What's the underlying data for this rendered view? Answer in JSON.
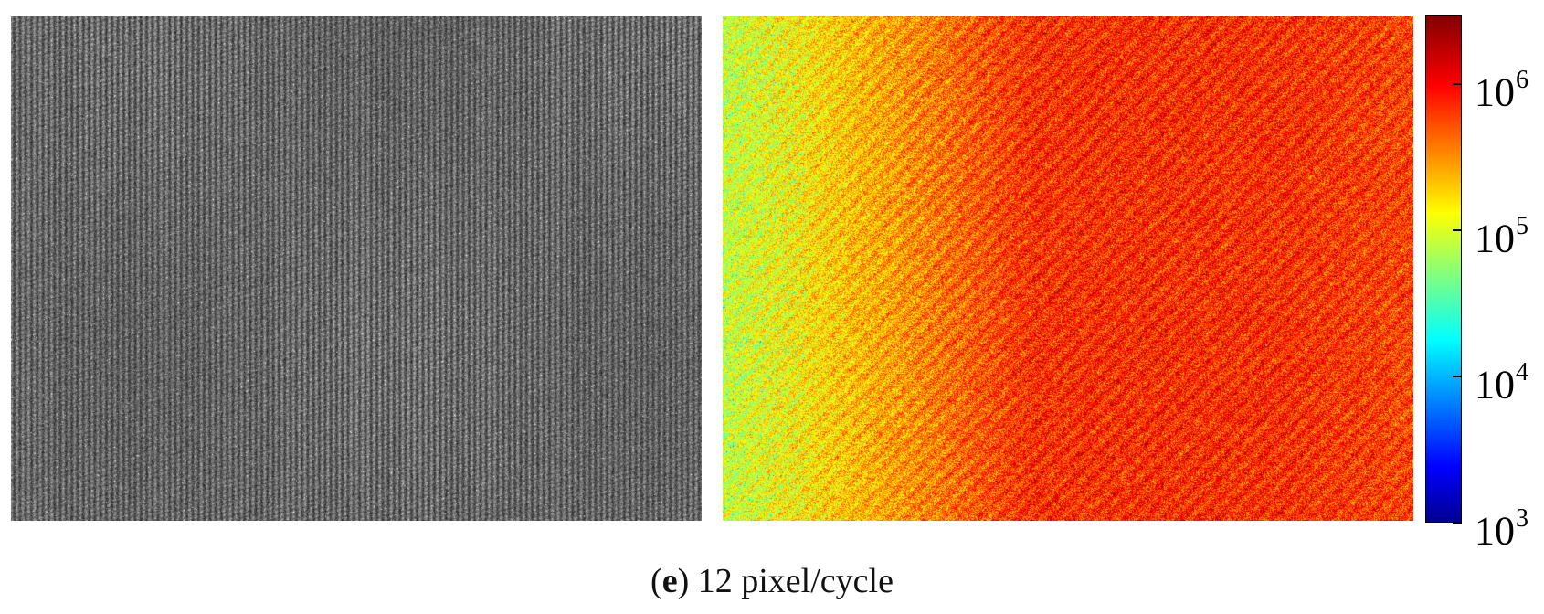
{
  "caption": {
    "panel_letter": "e",
    "text": "12 pixel/cycle"
  },
  "chart_data": [
    {
      "type": "image",
      "description_role": "grayscale fringe pattern image (vertical stripes)"
    },
    {
      "type": "heatmap",
      "colormap": "jet",
      "scale": "log",
      "colorbar": {
        "range": [
          1000,
          3000000
        ],
        "ticks": [
          {
            "value": 1000,
            "base": "10",
            "exp": "3"
          },
          {
            "value": 10000,
            "base": "10",
            "exp": "4"
          },
          {
            "value": 100000,
            "base": "10",
            "exp": "5"
          },
          {
            "value": 1000000,
            "base": "10",
            "exp": "6"
          }
        ]
      },
      "trend": "values rise from about 10^5 at the left edge to about 10^6 toward the center-right"
    }
  ],
  "colors": {
    "gray_base": "#5a5a5a",
    "jet_low": "#00008f",
    "jet_high": "#800000"
  }
}
